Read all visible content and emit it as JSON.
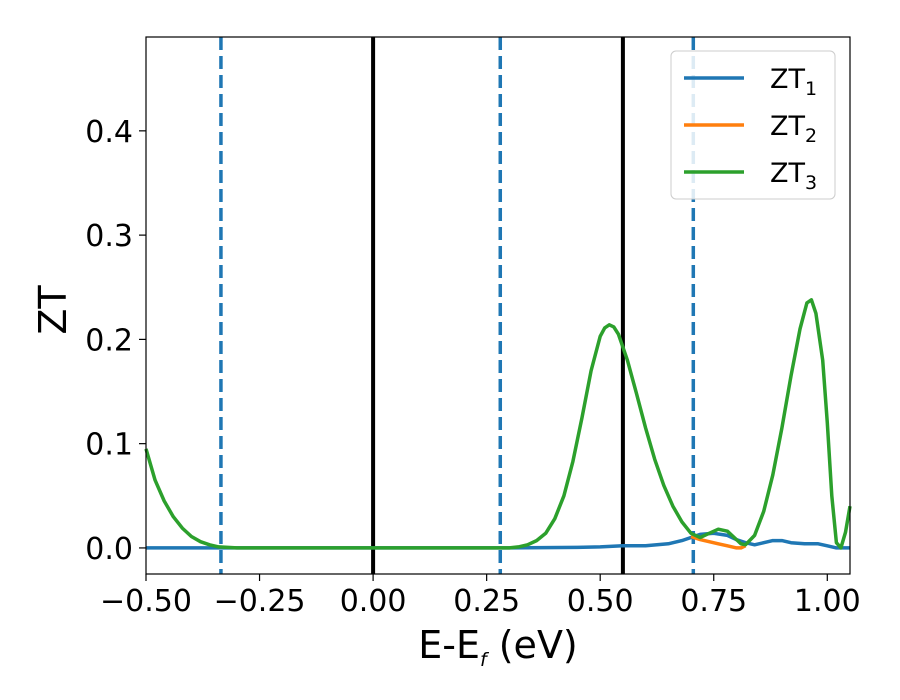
{
  "chart_data": {
    "type": "line",
    "xlabel": {
      "main": "E-E",
      "sub": "f",
      "tail": " (eV)"
    },
    "ylabel": "ZT",
    "xlim": [
      -0.5,
      1.05
    ],
    "ylim": [
      -0.025,
      0.49
    ],
    "xticks": [
      {
        "value": -0.5,
        "label": "−0.50"
      },
      {
        "value": -0.25,
        "label": "−0.25"
      },
      {
        "value": 0.0,
        "label": "0.00"
      },
      {
        "value": 0.25,
        "label": "0.25"
      },
      {
        "value": 0.5,
        "label": "0.50"
      },
      {
        "value": 0.75,
        "label": "0.75"
      },
      {
        "value": 1.0,
        "label": "1.00"
      }
    ],
    "yticks": [
      {
        "value": 0.0,
        "label": "0.0"
      },
      {
        "value": 0.1,
        "label": "0.1"
      },
      {
        "value": 0.2,
        "label": "0.2"
      },
      {
        "value": 0.3,
        "label": "0.3"
      },
      {
        "value": 0.4,
        "label": "0.4"
      }
    ],
    "legend_position": "top-right",
    "vertical_lines": [
      {
        "x": -0.335,
        "style": "dashed",
        "color": "#1f77b4"
      },
      {
        "x": 0.0,
        "style": "solid",
        "color": "#000000"
      },
      {
        "x": 0.28,
        "style": "dashed",
        "color": "#1f77b4"
      },
      {
        "x": 0.55,
        "style": "solid",
        "color": "#000000"
      },
      {
        "x": 0.705,
        "style": "dashed",
        "color": "#1f77b4"
      }
    ],
    "series": [
      {
        "name": "ZT",
        "sub": "1",
        "color": "#1f77b4",
        "points": [
          [
            -0.5,
            0.0
          ],
          [
            -0.3,
            0.0
          ],
          [
            0.0,
            0.0
          ],
          [
            0.3,
            0.0
          ],
          [
            0.45,
            0.0005
          ],
          [
            0.5,
            0.001
          ],
          [
            0.55,
            0.002
          ],
          [
            0.6,
            0.002
          ],
          [
            0.65,
            0.004
          ],
          [
            0.68,
            0.007
          ],
          [
            0.7,
            0.01
          ],
          [
            0.72,
            0.013
          ],
          [
            0.75,
            0.014
          ],
          [
            0.78,
            0.012
          ],
          [
            0.8,
            0.008
          ],
          [
            0.82,
            0.005
          ],
          [
            0.84,
            0.003
          ],
          [
            0.86,
            0.005
          ],
          [
            0.88,
            0.007
          ],
          [
            0.9,
            0.007
          ],
          [
            0.92,
            0.005
          ],
          [
            0.95,
            0.004
          ],
          [
            0.98,
            0.004
          ],
          [
            1.0,
            0.002
          ],
          [
            1.02,
            0.0
          ],
          [
            1.05,
            0.0
          ]
        ]
      },
      {
        "name": "ZT",
        "sub": "2",
        "color": "#ff7f0e",
        "points": [
          [
            0.7,
            0.011
          ],
          [
            0.72,
            0.008
          ],
          [
            0.74,
            0.006
          ],
          [
            0.76,
            0.004
          ],
          [
            0.78,
            0.002
          ],
          [
            0.8,
            0.0
          ],
          [
            0.81,
            0.0
          ],
          [
            0.82,
            0.002
          ]
        ]
      },
      {
        "name": "ZT",
        "sub": "3",
        "color": "#2ca02c",
        "points": [
          [
            -0.5,
            0.095
          ],
          [
            -0.48,
            0.065
          ],
          [
            -0.46,
            0.045
          ],
          [
            -0.44,
            0.03
          ],
          [
            -0.42,
            0.019
          ],
          [
            -0.4,
            0.011
          ],
          [
            -0.38,
            0.006
          ],
          [
            -0.36,
            0.003
          ],
          [
            -0.34,
            0.001
          ],
          [
            -0.3,
            0.0
          ],
          [
            0.0,
            0.0
          ],
          [
            0.3,
            0.0
          ],
          [
            0.32,
            0.001
          ],
          [
            0.34,
            0.003
          ],
          [
            0.36,
            0.007
          ],
          [
            0.38,
            0.014
          ],
          [
            0.4,
            0.028
          ],
          [
            0.42,
            0.05
          ],
          [
            0.44,
            0.083
          ],
          [
            0.46,
            0.125
          ],
          [
            0.48,
            0.17
          ],
          [
            0.5,
            0.203
          ],
          [
            0.51,
            0.211
          ],
          [
            0.52,
            0.214
          ],
          [
            0.53,
            0.212
          ],
          [
            0.54,
            0.205
          ],
          [
            0.56,
            0.18
          ],
          [
            0.58,
            0.148
          ],
          [
            0.6,
            0.115
          ],
          [
            0.62,
            0.085
          ],
          [
            0.64,
            0.06
          ],
          [
            0.66,
            0.04
          ],
          [
            0.68,
            0.025
          ],
          [
            0.7,
            0.014
          ],
          [
            0.72,
            0.01
          ],
          [
            0.74,
            0.014
          ],
          [
            0.76,
            0.018
          ],
          [
            0.78,
            0.016
          ],
          [
            0.8,
            0.008
          ],
          [
            0.81,
            0.004
          ],
          [
            0.82,
            0.003
          ],
          [
            0.84,
            0.012
          ],
          [
            0.86,
            0.035
          ],
          [
            0.88,
            0.07
          ],
          [
            0.9,
            0.115
          ],
          [
            0.92,
            0.165
          ],
          [
            0.94,
            0.21
          ],
          [
            0.955,
            0.235
          ],
          [
            0.965,
            0.238
          ],
          [
            0.975,
            0.225
          ],
          [
            0.99,
            0.18
          ],
          [
            1.0,
            0.12
          ],
          [
            1.01,
            0.05
          ],
          [
            1.02,
            0.005
          ],
          [
            1.03,
            0.0
          ],
          [
            1.04,
            0.015
          ],
          [
            1.05,
            0.04
          ]
        ]
      }
    ]
  }
}
